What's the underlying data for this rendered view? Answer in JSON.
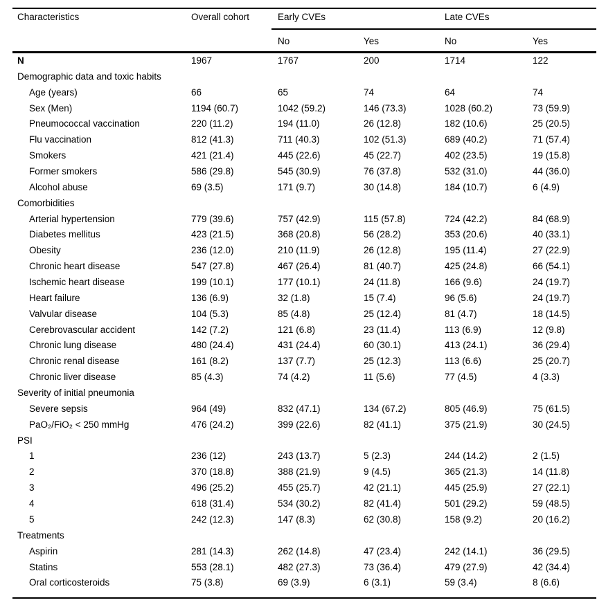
{
  "page": {
    "background_color": "#ffffff",
    "text_color": "#000000"
  },
  "table": {
    "header": {
      "characteristics": "Characteristics",
      "overall_cohort": "Overall cohort",
      "early_cves": "Early CVEs",
      "late_cves": "Late CVEs",
      "early_no": "No",
      "early_yes": "Yes",
      "late_no": "No",
      "late_yes": "Yes"
    },
    "rows": [
      {
        "label": "N",
        "bold": true,
        "values": [
          "1967",
          "1767",
          "200",
          "1714",
          "122"
        ]
      },
      {
        "label": "Demographic data and toxic habits",
        "section": true
      },
      {
        "label": "Age (years)",
        "indent": true,
        "values": [
          "66",
          "65",
          "74",
          "64",
          "74"
        ]
      },
      {
        "label": "Sex (Men)",
        "indent": true,
        "values": [
          "1194 (60.7)",
          "1042 (59.2)",
          "146 (73.3)",
          "1028 (60.2)",
          "73 (59.9)"
        ]
      },
      {
        "label": "Pneumococcal vaccination",
        "indent": true,
        "values": [
          "220 (11.2)",
          "194 (11.0)",
          "26 (12.8)",
          "182 (10.6)",
          "25 (20.5)"
        ]
      },
      {
        "label": "Flu vaccination",
        "indent": true,
        "values": [
          "812 (41.3)",
          "711 (40.3)",
          "102 (51.3)",
          "689 (40.2)",
          "71 (57.4)"
        ]
      },
      {
        "label": "Smokers",
        "indent": true,
        "values": [
          "421 (21.4)",
          "445 (22.6)",
          "45 (22.7)",
          "402 (23.5)",
          "19 (15.8)"
        ]
      },
      {
        "label": "Former smokers",
        "indent": true,
        "values": [
          "586 (29.8)",
          "545 (30.9)",
          "76 (37.8)",
          "532 (31.0)",
          "44 (36.0)"
        ]
      },
      {
        "label": "Alcohol abuse",
        "indent": true,
        "values": [
          "69 (3.5)",
          "171 (9.7)",
          "30 (14.8)",
          "184 (10.7)",
          "6 (4.9)"
        ]
      },
      {
        "label": "Comorbidities",
        "section": true
      },
      {
        "label": "Arterial hypertension",
        "indent": true,
        "values": [
          "779 (39.6)",
          "757 (42.9)",
          "115 (57.8)",
          "724 (42.2)",
          "84 (68.9)"
        ]
      },
      {
        "label": "Diabetes mellitus",
        "indent": true,
        "values": [
          "423 (21.5)",
          "368 (20.8)",
          "56 (28.2)",
          "353 (20.6)",
          "40 (33.1)"
        ]
      },
      {
        "label": "Obesity",
        "indent": true,
        "values": [
          "236 (12.0)",
          "210 (11.9)",
          "26 (12.8)",
          "195 (11.4)",
          "27 (22.9)"
        ]
      },
      {
        "label": "Chronic heart disease",
        "indent": true,
        "values": [
          "547 (27.8)",
          "467 (26.4)",
          "81 (40.7)",
          "425 (24.8)",
          "66 (54.1)"
        ]
      },
      {
        "label": "Ischemic heart disease",
        "indent": true,
        "values": [
          "199 (10.1)",
          "177 (10.1)",
          "24 (11.8)",
          "166 (9.6)",
          "24 (19.7)"
        ]
      },
      {
        "label": "Heart failure",
        "indent": true,
        "values": [
          "136 (6.9)",
          "32 (1.8)",
          "15 (7.4)",
          "96 (5.6)",
          "24 (19.7)"
        ]
      },
      {
        "label": "Valvular disease",
        "indent": true,
        "values": [
          "104 (5.3)",
          "85 (4.8)",
          "25 (12.4)",
          "81 (4.7)",
          "18 (14.5)"
        ]
      },
      {
        "label": "Cerebrovascular accident",
        "indent": true,
        "values": [
          "142 (7.2)",
          "121 (6.8)",
          "23 (11.4)",
          "113 (6.9)",
          "12 (9.8)"
        ]
      },
      {
        "label": "Chronic lung disease",
        "indent": true,
        "values": [
          "480 (24.4)",
          "431 (24.4)",
          "60 (30.1)",
          "413 (24.1)",
          "36 (29.4)"
        ]
      },
      {
        "label": "Chronic renal disease",
        "indent": true,
        "values": [
          "161 (8.2)",
          "137 (7.7)",
          "25 (12.3)",
          "113 (6.6)",
          "25 (20.7)"
        ]
      },
      {
        "label": "Chronic liver disease",
        "indent": true,
        "values": [
          "85 (4.3)",
          "74 (4.2)",
          "11 (5.6)",
          "77 (4.5)",
          "4 (3.3)"
        ]
      },
      {
        "label": "Severity of initial pneumonia",
        "section": true
      },
      {
        "label": "Severe sepsis",
        "indent": true,
        "values": [
          "964 (49)",
          "832 (47.1)",
          "134 (67.2)",
          "805 (46.9)",
          "75 (61.5)"
        ]
      },
      {
        "label": "PaO₂/FiO₂ < 250 mmHg",
        "indent": true,
        "values": [
          "476 (24.2)",
          "399 (22.6)",
          "82 (41.1)",
          "375 (21.9)",
          "30 (24.5)"
        ]
      },
      {
        "label": "PSI",
        "section": true
      },
      {
        "label": "1",
        "indent": true,
        "values": [
          "236 (12)",
          "243 (13.7)",
          "5 (2.3)",
          "244 (14.2)",
          "2 (1.5)"
        ]
      },
      {
        "label": "2",
        "indent": true,
        "values": [
          "370 (18.8)",
          "388 (21.9)",
          "9 (4.5)",
          "365 (21.3)",
          "14 (11.8)"
        ]
      },
      {
        "label": "3",
        "indent": true,
        "values": [
          "496 (25.2)",
          "455 (25.7)",
          "42 (21.1)",
          "445 (25.9)",
          "27 (22.1)"
        ]
      },
      {
        "label": "4",
        "indent": true,
        "values": [
          "618 (31.4)",
          "534 (30.2)",
          "82 (41.4)",
          "501 (29.2)",
          "59 (48.5)"
        ]
      },
      {
        "label": "5",
        "indent": true,
        "values": [
          "242 (12.3)",
          "147 (8.3)",
          "62 (30.8)",
          "158 (9.2)",
          "20 (16.2)"
        ]
      },
      {
        "label": "Treatments",
        "section": true
      },
      {
        "label": "Aspirin",
        "indent": true,
        "values": [
          "281 (14.3)",
          "262 (14.8)",
          "47 (23.4)",
          "242 (14.1)",
          "36 (29.5)"
        ]
      },
      {
        "label": "Statins",
        "indent": true,
        "values": [
          "553 (28.1)",
          "482 (27.3)",
          "73 (36.4)",
          "479 (27.9)",
          "42 (34.4)"
        ]
      },
      {
        "label": "Oral corticosteroids",
        "indent": true,
        "values": [
          "75 (3.8)",
          "69 (3.9)",
          "6 (3.1)",
          "59 (3.4)",
          "8 (6.6)"
        ]
      }
    ]
  }
}
